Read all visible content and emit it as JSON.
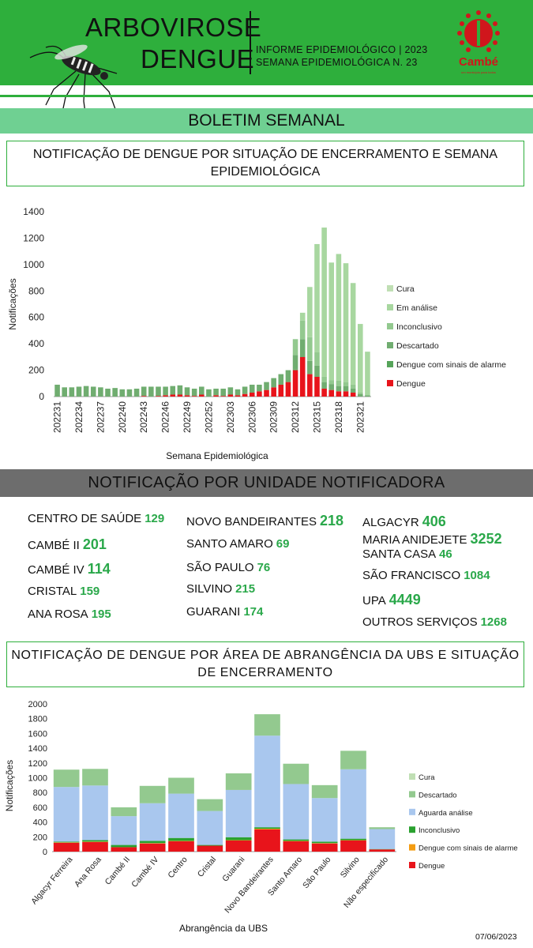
{
  "header": {
    "title_line1": "ARBOVIROSE",
    "title_line2": "DENGUE",
    "info_line1": "INFORME EPIDEMIOLÓGICO | 2023",
    "info_line2": "SEMANA EPIDEMIOLÓGICA  N. 23",
    "logo_text": "Cambé",
    "logo_sub": "um município para todos",
    "accent_color": "#2eaf3c"
  },
  "banner": "BOLETIM SEMANAL",
  "units_section_title": "NOTIFICAÇÃO POR UNIDADE NOTIFICADORA",
  "units": [
    {
      "name": "CENTRO  DE SAÚDE",
      "value": "129"
    },
    {
      "name": "CAMBÉ II",
      "value": "201"
    },
    {
      "name": "CAMBÉ IV",
      "value": "114"
    },
    {
      "name": "CRISTAL",
      "value": "159"
    },
    {
      "name": "ANA ROSA",
      "value": "195"
    },
    {
      "name": "NOVO BANDEIRANTES",
      "value": "218"
    },
    {
      "name": "SANTO AMARO",
      "value": "69"
    },
    {
      "name": "SÃO PAULO",
      "value": "76"
    },
    {
      "name": "SILVINO",
      "value": "215"
    },
    {
      "name": "GUARANI",
      "value": "174"
    },
    {
      "name": "ALGACYR",
      "value": "406"
    },
    {
      "name": "MARIA ANIDEJETE",
      "value": "3252"
    },
    {
      "name": "SANTA CASA",
      "value": "46"
    },
    {
      "name": "SÃO FRANCISCO",
      "value": "1084"
    },
    {
      "name": "UPA",
      "value": "4449"
    },
    {
      "name": "OUTROS SERVIÇOS",
      "value": "1268"
    }
  ],
  "date": "07/06/2023",
  "chart_data": [
    {
      "type": "bar",
      "stacked": true,
      "title": "NOTIFICAÇÃO DE DENGUE POR SITUAÇÃO DE ENCERRAMENTO E SEMANA EPIDEMIOLÓGICA",
      "xlabel": "Semana Epidemiológica",
      "ylabel": "Notificações",
      "ylim": [
        0,
        1400
      ],
      "yticks": [
        0,
        200,
        400,
        600,
        800,
        1000,
        1200,
        1400
      ],
      "legend_position": "right",
      "categories": [
        "202231",
        "202232",
        "202233",
        "202234",
        "202235",
        "202236",
        "202237",
        "202238",
        "202239",
        "202240",
        "202241",
        "202242",
        "202243",
        "202244",
        "202245",
        "202246",
        "202247",
        "202248",
        "202249",
        "202250",
        "202251",
        "202252",
        "202301",
        "202302",
        "202303",
        "202304",
        "202305",
        "202306",
        "202307",
        "202308",
        "202309",
        "202310",
        "202311",
        "202312",
        "202313",
        "202314",
        "202315",
        "202316",
        "202317",
        "202318",
        "202319",
        "202320",
        "202321",
        "202322"
      ],
      "tick_labels": [
        "202231",
        "202234",
        "202237",
        "202240",
        "202243",
        "202246",
        "202249",
        "202252",
        "202303",
        "202306",
        "202309",
        "202312",
        "202315",
        "202318",
        "202321"
      ],
      "series": [
        {
          "name": "Dengue",
          "color": "#e8141b",
          "values": [
            0,
            0,
            0,
            0,
            0,
            0,
            0,
            0,
            0,
            0,
            0,
            0,
            5,
            0,
            5,
            10,
            15,
            15,
            10,
            5,
            15,
            0,
            10,
            5,
            15,
            10,
            20,
            30,
            40,
            50,
            70,
            90,
            110,
            200,
            300,
            170,
            150,
            60,
            50,
            40,
            40,
            30,
            0,
            0
          ]
        },
        {
          "name": "Dengue com sinais de alarme",
          "color": "#56a45a",
          "values": [
            0,
            0,
            0,
            0,
            0,
            0,
            0,
            0,
            0,
            0,
            0,
            0,
            0,
            0,
            0,
            0,
            0,
            0,
            0,
            0,
            0,
            0,
            0,
            0,
            0,
            0,
            0,
            0,
            0,
            0,
            0,
            0,
            0,
            5,
            5,
            0,
            5,
            0,
            0,
            0,
            0,
            0,
            0,
            0
          ]
        },
        {
          "name": "Descartado",
          "color": "#70ad70",
          "values": [
            90,
            70,
            70,
            75,
            80,
            75,
            70,
            60,
            65,
            55,
            55,
            60,
            70,
            75,
            70,
            65,
            65,
            70,
            60,
            55,
            60,
            55,
            50,
            55,
            55,
            45,
            55,
            60,
            50,
            60,
            70,
            80,
            90,
            110,
            130,
            100,
            80,
            50,
            45,
            40,
            40,
            30,
            20,
            10
          ]
        },
        {
          "name": "Inconclusivo",
          "color": "#93c98f",
          "values": [
            0,
            0,
            0,
            0,
            0,
            0,
            0,
            0,
            0,
            0,
            0,
            0,
            0,
            0,
            0,
            0,
            0,
            0,
            0,
            0,
            0,
            0,
            0,
            0,
            0,
            0,
            0,
            0,
            0,
            0,
            0,
            0,
            0,
            120,
            140,
            180,
            100,
            40,
            30,
            40,
            30,
            30,
            10,
            0
          ]
        },
        {
          "name": "Em análise",
          "color": "#a8d7a0",
          "values": [
            0,
            0,
            0,
            0,
            0,
            0,
            0,
            0,
            0,
            0,
            0,
            0,
            0,
            0,
            0,
            0,
            0,
            0,
            0,
            0,
            0,
            0,
            0,
            0,
            0,
            0,
            0,
            0,
            0,
            0,
            0,
            0,
            0,
            0,
            60,
            380,
            820,
            1130,
            890,
            960,
            900,
            770,
            520,
            330
          ]
        },
        {
          "name": "Cura",
          "color": "#c0dfb4",
          "values": [
            0,
            0,
            0,
            0,
            0,
            0,
            0,
            0,
            0,
            0,
            0,
            0,
            0,
            0,
            0,
            0,
            0,
            0,
            0,
            0,
            0,
            0,
            0,
            0,
            0,
            0,
            0,
            0,
            0,
            0,
            0,
            0,
            0,
            0,
            0,
            0,
            0,
            0,
            0,
            0,
            0,
            0,
            0,
            0
          ]
        }
      ]
    },
    {
      "type": "bar",
      "stacked": true,
      "title": "NOTIFICAÇÃO DE DENGUE POR ÁREA DE ABRANGÊNCIA DA UBS E SITUAÇÃO DE ENCERRAMENTO",
      "xlabel": "Abrangência da UBS",
      "ylabel": "Notificações",
      "ylim": [
        0,
        2000
      ],
      "yticks": [
        0,
        200,
        400,
        600,
        800,
        1000,
        1200,
        1400,
        1600,
        1800,
        2000
      ],
      "legend_position": "right",
      "categories": [
        "Algacyr Ferreira",
        "Ana Rosa",
        "Cambé II",
        "Cambé IV",
        "Centro",
        "Cristal",
        "Guarani",
        "Novo Bandeirantes",
        "Santo Amaro",
        "São Paulo",
        "Silvino",
        "Não especificado"
      ],
      "series": [
        {
          "name": "Dengue",
          "color": "#e8141b",
          "values": [
            120,
            130,
            60,
            110,
            140,
            80,
            150,
            300,
            140,
            110,
            150,
            30
          ]
        },
        {
          "name": "Dengue com sinais de alarme",
          "color": "#f39c12",
          "values": [
            5,
            5,
            0,
            5,
            5,
            0,
            5,
            10,
            5,
            5,
            5,
            0
          ]
        },
        {
          "name": "Inconclusivo",
          "color": "#2aa12f",
          "values": [
            10,
            20,
            30,
            30,
            40,
            10,
            40,
            20,
            20,
            20,
            20,
            5
          ]
        },
        {
          "name": "Aguarda análise",
          "color": "#a9c7ee",
          "values": [
            740,
            740,
            390,
            510,
            600,
            460,
            640,
            1240,
            750,
            590,
            940,
            270
          ]
        },
        {
          "name": "Descartado",
          "color": "#93c98f",
          "values": [
            235,
            225,
            120,
            235,
            215,
            160,
            225,
            290,
            275,
            175,
            250,
            25
          ]
        },
        {
          "name": "Cura",
          "color": "#c0dfb4",
          "values": [
            0,
            0,
            0,
            0,
            0,
            0,
            0,
            0,
            0,
            0,
            0,
            0
          ]
        }
      ]
    }
  ]
}
